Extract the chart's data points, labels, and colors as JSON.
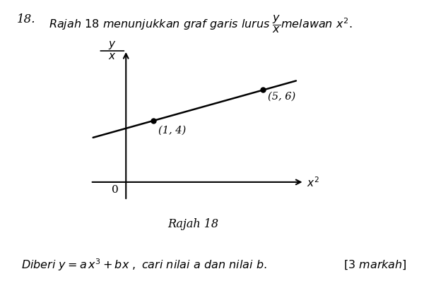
{
  "question_number": "18.",
  "ylabel_top": "y",
  "ylabel_bottom": "x",
  "xlabel": "x²",
  "origin_label": "0",
  "points": [
    [
      1,
      4
    ],
    [
      5,
      6
    ]
  ],
  "point_labels": [
    "(1, 4)",
    "(5, 6)"
  ],
  "figure_label": "Rajah 18",
  "bg_color": "#ffffff",
  "line_color": "#000000",
  "point_color": "#000000",
  "text_color": "#000000",
  "axis_color": "#000000",
  "xlim": [
    -1.5,
    7.0
  ],
  "ylim": [
    -1.5,
    9.0
  ],
  "x_line_start": -1.2,
  "x_line_end": 6.2,
  "slope": 0.5,
  "intercept": 3.5
}
